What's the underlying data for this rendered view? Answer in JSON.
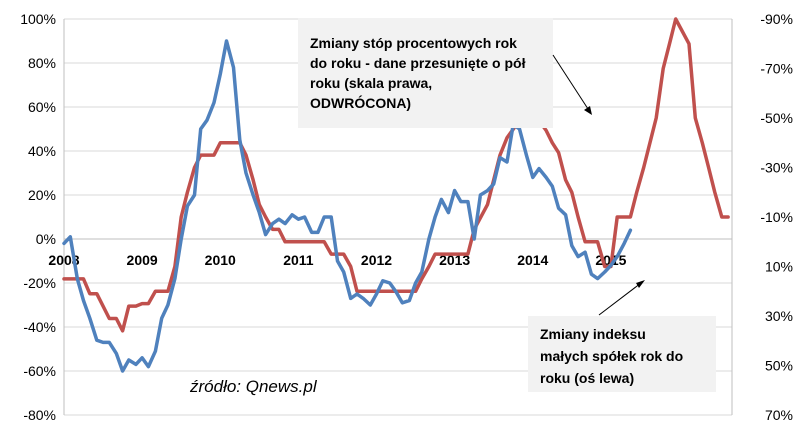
{
  "chart_data": {
    "type": "line",
    "x_axis": {
      "tick_labels": [
        "2008",
        "2009",
        "2010",
        "2011",
        "2012",
        "2013",
        "2014",
        "2015"
      ],
      "range": [
        2008,
        2016.55
      ]
    },
    "y_axis_left": {
      "range": [
        -80,
        100
      ],
      "ticks": [
        100,
        80,
        60,
        40,
        20,
        0,
        -20,
        -40,
        -60,
        -80
      ],
      "tick_labels": [
        "100%",
        "80%",
        "60%",
        "40%",
        "20%",
        "0%",
        "-20%",
        "-40%",
        "-60%",
        "-80%"
      ],
      "grid": true
    },
    "y_axis_right": {
      "reversed": true,
      "range": [
        -90,
        70
      ],
      "ticks": [
        -90,
        -70,
        -50,
        -30,
        -10,
        10,
        30,
        50,
        70
      ],
      "tick_labels": [
        "-90%",
        "-70%",
        "-50%",
        "-30%",
        "-10%",
        "10%",
        "30%",
        "50%",
        "70%"
      ]
    },
    "series": [
      {
        "id": "small_caps",
        "axis": "left",
        "color": "#4f81bd",
        "points": [
          [
            2008.0,
            -2
          ],
          [
            2008.08,
            1
          ],
          [
            2008.17,
            -18
          ],
          [
            2008.25,
            -28
          ],
          [
            2008.33,
            -36
          ],
          [
            2008.42,
            -46
          ],
          [
            2008.5,
            -47
          ],
          [
            2008.58,
            -47
          ],
          [
            2008.67,
            -52
          ],
          [
            2008.75,
            -60
          ],
          [
            2008.83,
            -55
          ],
          [
            2008.92,
            -57
          ],
          [
            2009.0,
            -54
          ],
          [
            2009.08,
            -58
          ],
          [
            2009.17,
            -51
          ],
          [
            2009.25,
            -36
          ],
          [
            2009.33,
            -30
          ],
          [
            2009.42,
            -18
          ],
          [
            2009.5,
            0
          ],
          [
            2009.58,
            15
          ],
          [
            2009.67,
            20
          ],
          [
            2009.75,
            50
          ],
          [
            2009.83,
            54
          ],
          [
            2009.92,
            62
          ],
          [
            2010.0,
            75
          ],
          [
            2010.08,
            90
          ],
          [
            2010.17,
            78
          ],
          [
            2010.25,
            45
          ],
          [
            2010.33,
            30
          ],
          [
            2010.42,
            20
          ],
          [
            2010.5,
            12
          ],
          [
            2010.58,
            2
          ],
          [
            2010.67,
            7
          ],
          [
            2010.75,
            9
          ],
          [
            2010.83,
            7
          ],
          [
            2010.92,
            11
          ],
          [
            2011.0,
            9
          ],
          [
            2011.08,
            10
          ],
          [
            2011.17,
            3
          ],
          [
            2011.25,
            3
          ],
          [
            2011.33,
            10
          ],
          [
            2011.42,
            10
          ],
          [
            2011.5,
            -10
          ],
          [
            2011.58,
            -15
          ],
          [
            2011.67,
            -27
          ],
          [
            2011.75,
            -25
          ],
          [
            2011.83,
            -27
          ],
          [
            2011.92,
            -30
          ],
          [
            2012.0,
            -25
          ],
          [
            2012.08,
            -19
          ],
          [
            2012.17,
            -20
          ],
          [
            2012.25,
            -24
          ],
          [
            2012.33,
            -29
          ],
          [
            2012.42,
            -28
          ],
          [
            2012.5,
            -20
          ],
          [
            2012.58,
            -15
          ],
          [
            2012.67,
            0
          ],
          [
            2012.75,
            10
          ],
          [
            2012.83,
            18
          ],
          [
            2012.92,
            12
          ],
          [
            2013.0,
            22
          ],
          [
            2013.08,
            17
          ],
          [
            2013.17,
            17
          ],
          [
            2013.25,
            0
          ],
          [
            2013.33,
            20
          ],
          [
            2013.42,
            22
          ],
          [
            2013.5,
            25
          ],
          [
            2013.58,
            37
          ],
          [
            2013.67,
            35
          ],
          [
            2013.75,
            52
          ],
          [
            2013.83,
            50
          ],
          [
            2013.92,
            38
          ],
          [
            2014.0,
            28
          ],
          [
            2014.08,
            32
          ],
          [
            2014.17,
            28
          ],
          [
            2014.25,
            24
          ],
          [
            2014.33,
            14
          ],
          [
            2014.42,
            11
          ],
          [
            2014.5,
            -3
          ],
          [
            2014.58,
            -8
          ],
          [
            2014.67,
            -6
          ],
          [
            2014.75,
            -16
          ],
          [
            2014.83,
            -18
          ],
          [
            2014.92,
            -15
          ],
          [
            2015.0,
            -12
          ],
          [
            2015.08,
            -8
          ],
          [
            2015.17,
            -2
          ],
          [
            2015.25,
            4
          ]
        ]
      },
      {
        "id": "rates_change",
        "axis": "right",
        "color": "#c0504d",
        "points": [
          [
            2008.0,
            15
          ],
          [
            2008.25,
            15
          ],
          [
            2008.33,
            21
          ],
          [
            2008.42,
            21
          ],
          [
            2008.58,
            31
          ],
          [
            2008.67,
            31
          ],
          [
            2008.75,
            36
          ],
          [
            2008.83,
            26
          ],
          [
            2008.92,
            26
          ],
          [
            2009.0,
            25
          ],
          [
            2009.08,
            25
          ],
          [
            2009.17,
            20
          ],
          [
            2009.33,
            20
          ],
          [
            2009.42,
            10
          ],
          [
            2009.5,
            -10
          ],
          [
            2009.58,
            -20
          ],
          [
            2009.67,
            -30
          ],
          [
            2009.75,
            -35
          ],
          [
            2009.92,
            -35
          ],
          [
            2010.0,
            -40
          ],
          [
            2010.25,
            -40
          ],
          [
            2010.33,
            -35
          ],
          [
            2010.42,
            -25
          ],
          [
            2010.5,
            -15
          ],
          [
            2010.58,
            -10
          ],
          [
            2010.67,
            -5
          ],
          [
            2010.75,
            -5
          ],
          [
            2010.83,
            0
          ],
          [
            2011.33,
            0
          ],
          [
            2011.42,
            5
          ],
          [
            2011.58,
            5
          ],
          [
            2011.67,
            10
          ],
          [
            2011.75,
            20
          ],
          [
            2012.5,
            20
          ],
          [
            2012.58,
            15
          ],
          [
            2012.67,
            10
          ],
          [
            2012.75,
            5
          ],
          [
            2013.17,
            5
          ],
          [
            2013.25,
            -5
          ],
          [
            2013.42,
            -15
          ],
          [
            2013.5,
            -25
          ],
          [
            2013.58,
            -35
          ],
          [
            2013.67,
            -42
          ],
          [
            2013.83,
            -49
          ],
          [
            2014.08,
            -49
          ],
          [
            2014.17,
            -45
          ],
          [
            2014.25,
            -40
          ],
          [
            2014.33,
            -36
          ],
          [
            2014.42,
            -25
          ],
          [
            2014.5,
            -20
          ],
          [
            2014.58,
            -10
          ],
          [
            2014.67,
            0
          ],
          [
            2014.83,
            0
          ],
          [
            2014.92,
            10
          ],
          [
            2015.0,
            10
          ],
          [
            2015.08,
            -10
          ],
          [
            2015.25,
            -10
          ],
          [
            2015.33,
            -20
          ],
          [
            2015.42,
            -30
          ],
          [
            2015.58,
            -50
          ],
          [
            2015.67,
            -70
          ],
          [
            2015.75,
            -80
          ],
          [
            2015.83,
            -90
          ],
          [
            2016.0,
            -80
          ],
          [
            2016.08,
            -50
          ],
          [
            2016.17,
            -40
          ],
          [
            2016.25,
            -30
          ],
          [
            2016.33,
            -20
          ],
          [
            2016.42,
            -10
          ],
          [
            2016.5,
            -10
          ]
        ]
      }
    ],
    "annotations": [
      {
        "id": "rates",
        "lines": [
          "Zmiany stóp procentowych rok",
          "do roku - dane przesunięte o pół",
          "roku (skala prawa,",
          "ODWRÓCONA)"
        ]
      },
      {
        "id": "small_caps",
        "lines": [
          "Zmiany indeksu",
          "małych spółek rok do",
          "roku (oś lewa)"
        ]
      }
    ],
    "source": "źródło: Qnews.pl"
  }
}
